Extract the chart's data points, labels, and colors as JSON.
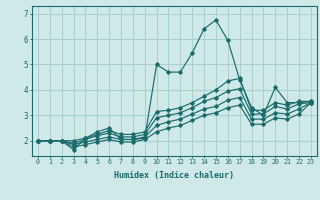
{
  "xlabel": "Humidex (Indice chaleur)",
  "xlim": [
    -0.5,
    23.5
  ],
  "ylim": [
    1.4,
    7.3
  ],
  "yticks": [
    2,
    3,
    4,
    5,
    6,
    7
  ],
  "xticks": [
    0,
    1,
    2,
    3,
    4,
    5,
    6,
    7,
    8,
    9,
    10,
    11,
    12,
    13,
    14,
    15,
    16,
    17,
    18,
    19,
    20,
    21,
    22,
    23
  ],
  "bg_color": "#cfe9e9",
  "grid_color": "#aacfcf",
  "line_color": "#1a6b6b",
  "lines": [
    {
      "x": [
        0,
        1,
        2,
        3,
        4,
        5,
        6,
        7,
        8,
        9,
        10,
        11,
        12,
        13,
        14,
        15,
        16,
        17,
        18,
        19,
        20,
        21,
        22,
        23
      ],
      "y": [
        2.0,
        2.0,
        2.0,
        1.65,
        2.1,
        2.35,
        2.5,
        2.05,
        2.05,
        2.1,
        5.0,
        4.7,
        4.7,
        5.45,
        6.4,
        6.75,
        5.95,
        4.4,
        3.3,
        3.0,
        4.1,
        3.5,
        3.5,
        3.55
      ]
    },
    {
      "x": [
        0,
        1,
        2,
        3,
        4,
        5,
        6,
        7,
        8,
        9,
        10,
        11,
        12,
        13,
        14,
        15,
        16,
        17,
        18,
        19,
        20,
        21,
        22,
        23
      ],
      "y": [
        2.0,
        2.0,
        2.0,
        2.0,
        2.1,
        2.25,
        2.4,
        2.25,
        2.25,
        2.35,
        3.15,
        3.2,
        3.3,
        3.5,
        3.75,
        4.0,
        4.35,
        4.45,
        3.2,
        3.2,
        3.5,
        3.4,
        3.55,
        3.55
      ]
    },
    {
      "x": [
        0,
        1,
        2,
        3,
        4,
        5,
        6,
        7,
        8,
        9,
        10,
        11,
        12,
        13,
        14,
        15,
        16,
        17,
        18,
        19,
        20,
        21,
        22,
        23
      ],
      "y": [
        2.0,
        2.0,
        2.0,
        1.9,
        2.05,
        2.2,
        2.3,
        2.15,
        2.15,
        2.25,
        2.9,
        3.0,
        3.1,
        3.3,
        3.55,
        3.7,
        3.95,
        4.05,
        3.05,
        3.05,
        3.35,
        3.25,
        3.45,
        3.5
      ]
    },
    {
      "x": [
        0,
        1,
        2,
        3,
        4,
        5,
        6,
        7,
        8,
        9,
        10,
        11,
        12,
        13,
        14,
        15,
        16,
        17,
        18,
        19,
        20,
        21,
        22,
        23
      ],
      "y": [
        2.0,
        2.0,
        2.0,
        1.85,
        1.95,
        2.05,
        2.15,
        2.05,
        2.05,
        2.15,
        2.6,
        2.75,
        2.85,
        3.05,
        3.25,
        3.35,
        3.6,
        3.7,
        2.85,
        2.85,
        3.1,
        3.05,
        3.25,
        3.5
      ]
    },
    {
      "x": [
        0,
        1,
        2,
        3,
        4,
        5,
        6,
        7,
        8,
        9,
        10,
        11,
        12,
        13,
        14,
        15,
        16,
        17,
        18,
        19,
        20,
        21,
        22,
        23
      ],
      "y": [
        2.0,
        2.0,
        2.0,
        1.75,
        1.85,
        1.95,
        2.05,
        1.95,
        1.95,
        2.05,
        2.35,
        2.5,
        2.6,
        2.8,
        3.0,
        3.1,
        3.3,
        3.4,
        2.65,
        2.65,
        2.9,
        2.85,
        3.05,
        3.5
      ]
    }
  ]
}
